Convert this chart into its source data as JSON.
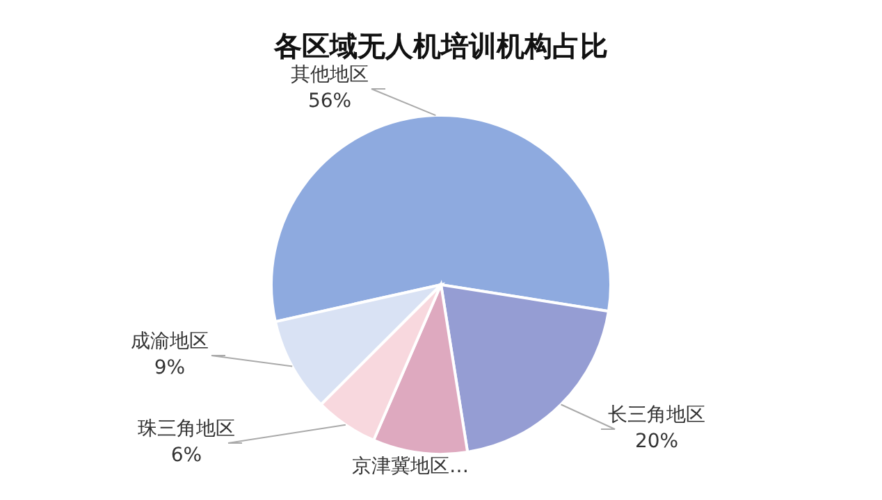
{
  "chart_data": {
    "type": "pie",
    "title": "各区域无人机培训机构占比",
    "categories": [
      "其他地区",
      "长三角地区",
      "京津冀地区…",
      "珠三角地区",
      "成渝地区"
    ],
    "values": [
      56,
      20,
      9,
      6,
      9
    ],
    "value_labels": [
      "56%",
      "20%",
      null,
      "6%",
      "9%"
    ],
    "colors": [
      "#8eaadf",
      "#959dd3",
      "#dea9bf",
      "#f8d8de",
      "#d9e2f4"
    ]
  }
}
